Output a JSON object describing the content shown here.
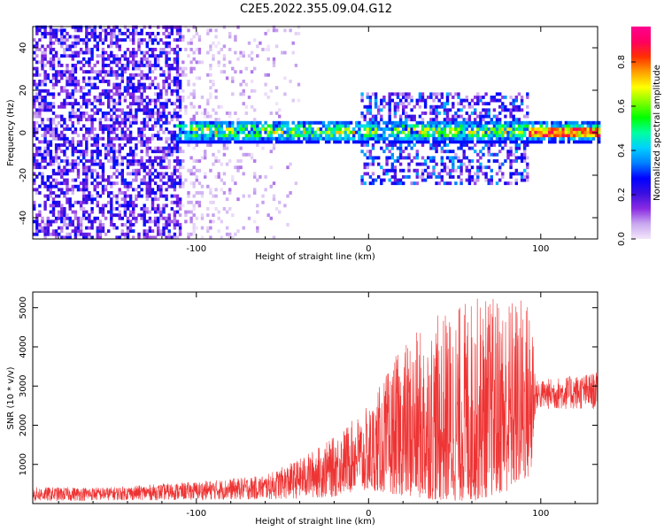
{
  "title": "C2E5.2022.355.09.04.G12",
  "colors": {
    "snr_line": "#ee3333",
    "axis": "#000000",
    "background": "#ffffff"
  },
  "chart_data": [
    {
      "type": "heatmap",
      "title": "C2E5.2022.355.09.04.G12",
      "xlabel": "Height of straight line (km)",
      "ylabel": "Frequency (Hz)",
      "xlim": [
        -195,
        133
      ],
      "ylim": [
        -50,
        50
      ],
      "x_ticks": [
        -100,
        0,
        100
      ],
      "x_tick_labels": [
        "-100",
        "0",
        "100"
      ],
      "y_ticks": [
        -40,
        -20,
        0,
        20,
        40
      ],
      "y_tick_labels": [
        "-40",
        "-20",
        "0",
        "20",
        "40"
      ],
      "grid": false,
      "colorbar": {
        "label": "Normalized spectral amplitude",
        "range": [
          0,
          0.96
        ],
        "ticks": [
          0.0,
          0.2,
          0.4,
          0.6,
          0.8
        ],
        "tick_labels": [
          "0.0",
          "0.2",
          "0.4",
          "0.6",
          "0.8"
        ],
        "colormap": [
          "#f2e6fa",
          "#c9a8ef",
          "#8a2be2",
          "#3a10e0",
          "#0000ff",
          "#0080ff",
          "#00d0ff",
          "#00ffa0",
          "#00ff00",
          "#80ff00",
          "#ffff00",
          "#ffa000",
          "#ff3000",
          "#ff0060",
          "#ff0090"
        ]
      },
      "regions": [
        {
          "name": "noise",
          "x_range": [
            -195,
            -110
          ],
          "freq_range": [
            -50,
            50
          ],
          "amplitude": [
            0.05,
            0.3
          ],
          "density": 0.55
        },
        {
          "name": "transition",
          "x_range": [
            -110,
            -40
          ],
          "freq_range": [
            -50,
            50
          ],
          "amplitude": [
            0.0,
            0.1
          ],
          "density": 0.25
        },
        {
          "name": "signal-band",
          "x_range": [
            -112,
            133
          ],
          "freq_center": 0,
          "freq_halfwidth": 5,
          "amplitude": [
            0.3,
            0.85
          ]
        },
        {
          "name": "spread",
          "x_range": [
            -5,
            92
          ],
          "freq_range": [
            -25,
            18
          ],
          "amplitude": [
            0.05,
            0.6
          ]
        },
        {
          "name": "strong-tail",
          "x_range": [
            92,
            133
          ],
          "freq_center": 0,
          "freq_halfwidth": 2,
          "amplitude": [
            0.6,
            0.9
          ]
        }
      ]
    },
    {
      "type": "line",
      "xlabel": "Height of straight line (km)",
      "ylabel": "SNR (10 * v/v)",
      "xlim": [
        -195,
        133
      ],
      "ylim": [
        0,
        5400
      ],
      "x_ticks": [
        -100,
        0,
        100
      ],
      "x_tick_labels": [
        "-100",
        "0",
        "100"
      ],
      "y_ticks": [
        1000,
        2000,
        3000,
        4000,
        5000
      ],
      "y_tick_labels": [
        "1000",
        "2000",
        "3000",
        "4000",
        "5000"
      ],
      "grid": false,
      "series": [
        {
          "name": "SNR",
          "color": "#ee3333",
          "envelope_x": [
            -195,
            -150,
            -100,
            -60,
            -40,
            -20,
            0,
            20,
            40,
            60,
            80,
            95,
            97,
            133
          ],
          "envelope_upper": [
            420,
            420,
            560,
            720,
            1150,
            1700,
            2500,
            4100,
            4800,
            5300,
            5350,
            5300,
            3150,
            3350
          ],
          "envelope_lower": [
            50,
            80,
            90,
            100,
            120,
            150,
            350,
            200,
            80,
            50,
            300,
            700,
            2400,
            2400
          ]
        }
      ]
    }
  ]
}
